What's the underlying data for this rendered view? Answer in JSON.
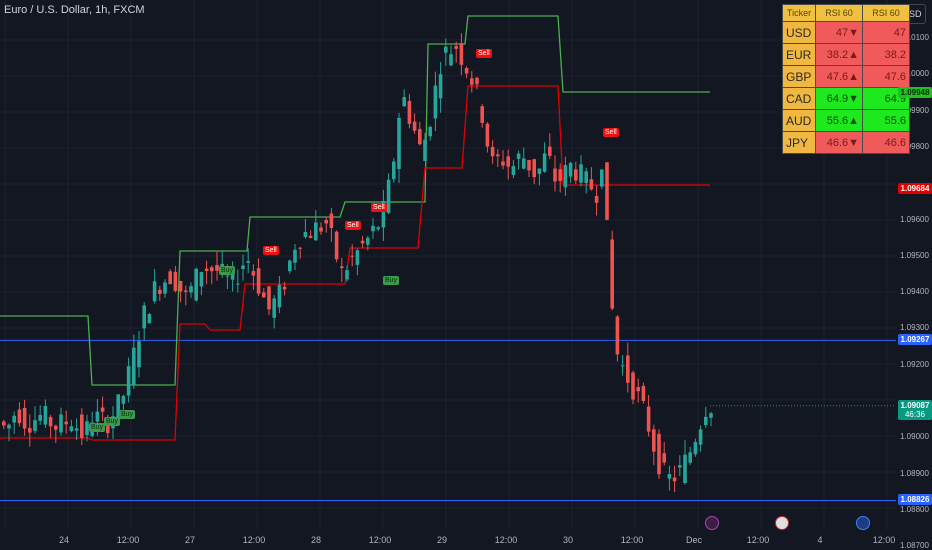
{
  "header": {
    "title": "Euro / U.S. Dollar, 1h, FXCM",
    "currency": "USD"
  },
  "y_axis": {
    "ticks": [
      {
        "label": "1.10100",
        "v": 1.101
      },
      {
        "label": "1.10000",
        "v": 1.1
      },
      {
        "label": "1.09900",
        "v": 1.099
      },
      {
        "label": "1.09800",
        "v": 1.098
      },
      {
        "label": "1.09600",
        "v": 1.096
      },
      {
        "label": "1.09500",
        "v": 1.095
      },
      {
        "label": "1.09400",
        "v": 1.094
      },
      {
        "label": "1.09300",
        "v": 1.093
      },
      {
        "label": "1.09200",
        "v": 1.092
      },
      {
        "label": "1.09000",
        "v": 1.09
      },
      {
        "label": "1.08900",
        "v": 1.089
      },
      {
        "label": "1.08800",
        "v": 1.088
      },
      {
        "label": "1.08700",
        "v": 1.087
      }
    ],
    "labels": [
      {
        "text": "1.09948",
        "v": 1.09948,
        "bg": "#20c020",
        "fg": "#0a2a0a"
      },
      {
        "text": "1.09684",
        "v": 1.09684,
        "bg": "#e00000",
        "fg": "#ffffff"
      },
      {
        "text": "1.09267",
        "v": 1.09267,
        "bg": "#2962ff",
        "fg": "#ffffff"
      },
      {
        "text": "1.09087",
        "sub": "46:36",
        "v": 1.09087,
        "bg": "#089981",
        "fg": "#ffffff"
      },
      {
        "text": "1.08826",
        "v": 1.08826,
        "bg": "#2962ff",
        "fg": "#ffffff"
      }
    ]
  },
  "x_axis": {
    "ticks": [
      "24",
      "12:00",
      "27",
      "12:00",
      "28",
      "12:00",
      "29",
      "12:00",
      "30",
      "12:00",
      "Dec",
      "12:00",
      "4",
      "12:00"
    ]
  },
  "rsi_table": {
    "headers": [
      "Ticker",
      "RSI 60",
      "RSI 60"
    ],
    "rows": [
      {
        "ticker": "USD",
        "v1": "47▼",
        "v2": "47",
        "color": "red"
      },
      {
        "ticker": "EUR",
        "v1": "38.2▲",
        "v2": "38.2",
        "color": "red"
      },
      {
        "ticker": "GBP",
        "v1": "47.6▲",
        "v2": "47.6",
        "color": "red"
      },
      {
        "ticker": "CAD",
        "v1": "64.9▼",
        "v2": "64.9",
        "color": "green"
      },
      {
        "ticker": "AUD",
        "v1": "55.6▲",
        "v2": "55.6",
        "color": "green"
      },
      {
        "ticker": "JPY",
        "v1": "46.6▼",
        "v2": "46.6",
        "color": "red"
      }
    ]
  },
  "signals": {
    "sell": "Sell",
    "buy": "Buy"
  },
  "horizontal_lines": [
    1.09267,
    1.08826
  ],
  "colors": {
    "up": "#26a69a",
    "down": "#ef5350",
    "upper_band": "#4caf50",
    "lower_band": "#e00000",
    "hline": "#2962ff"
  }
}
